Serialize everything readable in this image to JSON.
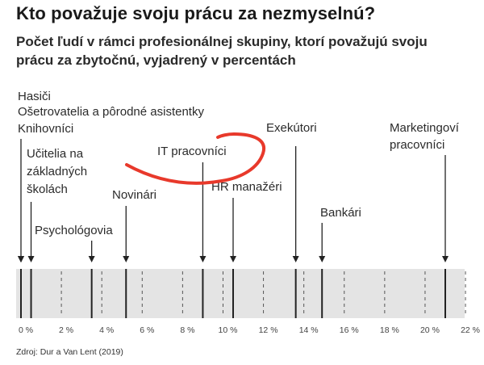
{
  "title": "Kto považuje svoju prácu za nezmyselnú?",
  "subtitle": "Počet ľudí v rámci profesionálnej skupiny, ktorí považujú svoju prácu za zbytočnú, vyjadrený v percentách",
  "source": "Zdroj: Dur a Van Lent (2019)",
  "colors": {
    "band": "#e4e4e4",
    "marker": "#222222",
    "dashed": "#555555",
    "scribble": "#e8392b"
  },
  "chart_data": {
    "type": "strip",
    "xlim": [
      0,
      22
    ],
    "x_ticks": [
      0,
      2,
      4,
      6,
      8,
      10,
      12,
      14,
      16,
      18,
      20,
      22
    ],
    "x_tick_labels": [
      "0 %",
      "2 %",
      "4 %",
      "6 %",
      "8 %",
      "10 %",
      "12 %",
      "14 %",
      "16 %",
      "18 %",
      "20 %",
      "22 %"
    ],
    "grid": "dashed vertical lines at every 2 %",
    "points": [
      {
        "name": "Hasiči",
        "value": 0.0
      },
      {
        "name": "Ošetrovatelia a pôrodné asistentky",
        "value": 0.0
      },
      {
        "name": "Knihovníci",
        "value": 0.0
      },
      {
        "name": "Učitelia na základných školách",
        "value": 0.5
      },
      {
        "name": "Psychológovia",
        "value": 3.5
      },
      {
        "name": "Novinári",
        "value": 5.2
      },
      {
        "name": "IT pracovníci",
        "value": 9.0
      },
      {
        "name": "HR manažéri",
        "value": 10.5
      },
      {
        "name": "Exekútori",
        "value": 13.6
      },
      {
        "name": "Bankári",
        "value": 14.9
      },
      {
        "name": "Marketingoví pracovníci",
        "value": 21.0
      }
    ]
  }
}
